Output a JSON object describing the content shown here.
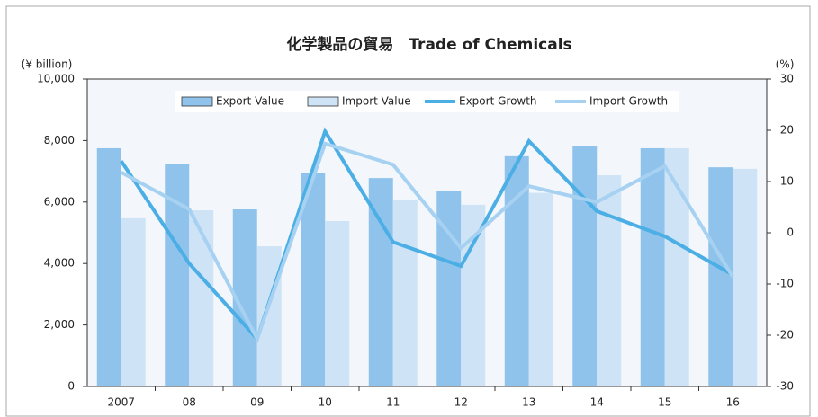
{
  "chart_data": {
    "type": "bar-line",
    "title": "化学製品の貿易　Trade of Chemicals",
    "y_label": "(¥ billion)",
    "y2_label": "(%)",
    "categories": [
      "2007",
      "08",
      "09",
      "10",
      "11",
      "12",
      "13",
      "14",
      "15",
      "16"
    ],
    "series": [
      {
        "name": "Export Value",
        "type": "bar",
        "color": "#90c3ec",
        "values": [
          7750,
          7250,
          5760,
          6930,
          6780,
          6350,
          7490,
          7810,
          7750,
          7130
        ]
      },
      {
        "name": "Import Value",
        "type": "bar",
        "color": "#cfe3f6",
        "values": [
          5470,
          5730,
          4560,
          5380,
          6080,
          5910,
          6300,
          6870,
          7750,
          7080
        ]
      },
      {
        "name": "Export Growth",
        "type": "line",
        "axis": "y2",
        "color": "#4baee5",
        "values": [
          14.0,
          -6.0,
          -20.7,
          19.8,
          -1.8,
          -6.5,
          17.9,
          4.2,
          -0.7,
          -8.2
        ]
      },
      {
        "name": "Import Growth",
        "type": "line",
        "axis": "y2",
        "color": "#a6d1f1",
        "values": [
          11.8,
          4.6,
          -20.7,
          17.4,
          13.3,
          -3.0,
          9.1,
          6.0,
          13.0,
          -8.6
        ]
      }
    ],
    "ylim": [
      0,
      10000
    ],
    "yticks": [
      0,
      {
        "value": 2000,
        "label": "2,000"
      },
      {
        "value": 4000,
        "label": "4,000"
      },
      {
        "value": 6000,
        "label": "6,000"
      },
      {
        "value": 8000,
        "label": "8,000"
      },
      {
        "value": 10000,
        "label": "10,000"
      }
    ],
    "y2lim": [
      -30,
      30
    ],
    "y2ticks": [
      -30,
      -20,
      -10,
      0,
      10,
      20,
      30
    ],
    "grid": false
  }
}
